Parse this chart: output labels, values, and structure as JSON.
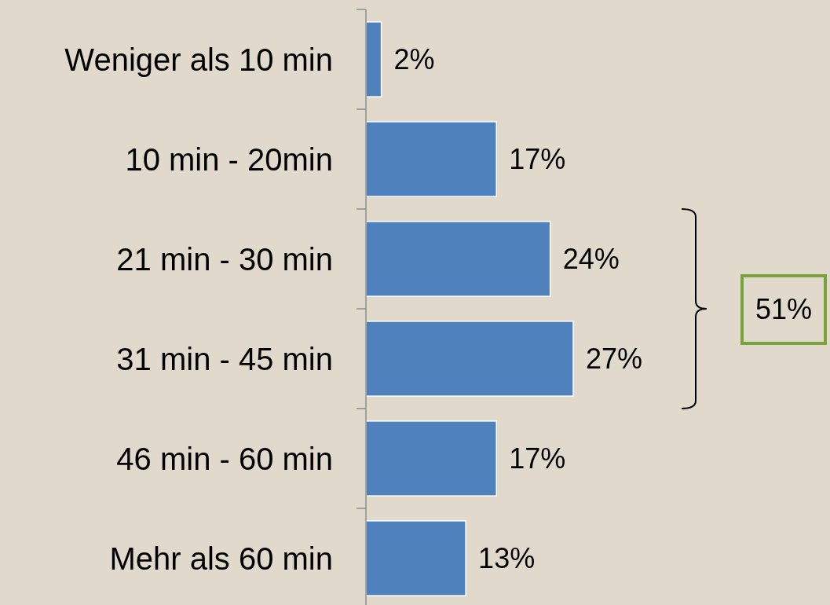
{
  "chart_data": {
    "type": "bar",
    "orientation": "horizontal",
    "categories": [
      "Weniger als 10 min",
      "10 min - 20min",
      "21 min - 30 min",
      "31 min - 45 min",
      "46 min - 60 min",
      "Mehr als 60 min"
    ],
    "values": [
      2,
      17,
      24,
      27,
      17,
      13
    ],
    "value_labels": [
      "2%",
      "17%",
      "24%",
      "27%",
      "17%",
      "13%"
    ],
    "color": "#4f81bd",
    "annotations": [
      "51%"
    ]
  }
}
